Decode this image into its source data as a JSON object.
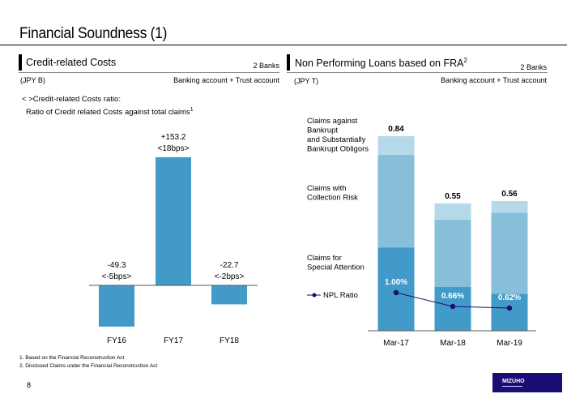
{
  "page": {
    "title": "Financial Soundness (1)",
    "page_number": "8",
    "logo_text": "MIZUHO",
    "footnotes": [
      "1. Based on the Financial Reconstruction Act",
      "2. Disclosed Claims under the Financial Reconstruction Act"
    ]
  },
  "left_panel": {
    "title": "Credit-related Costs",
    "scope": "2 Banks",
    "unit": "(JPY B)",
    "account": "Banking account + Trust account",
    "note_line1": "< >Credit-related Costs ratio:",
    "note_line2": "Ratio of Credit related Costs against total claims",
    "note_sup": "1"
  },
  "right_panel": {
    "title": "Non Performing Loans based on FRA",
    "title_sup": "2",
    "scope": "2 Banks",
    "unit": "(JPY T)",
    "account": "Banking account + Trust account"
  },
  "colors": {
    "bar_blue": "#419ac8",
    "seg_dark": "#419ac8",
    "seg_mid": "#87bfdb",
    "seg_light": "#b6d9ea",
    "npl_line": "#1a0d75",
    "logo_bg": "#1a0d75"
  },
  "chart_data": [
    {
      "type": "bar",
      "title": "Credit-related Costs",
      "ylabel": "JPY B",
      "categories": [
        "FY16",
        "FY17",
        "FY18"
      ],
      "values": [
        -49.3,
        153.2,
        -22.7
      ],
      "value_labels": [
        "-49.3",
        "+153.2",
        "-22.7"
      ],
      "ratio_labels": [
        "<-5bps>",
        "<18bps>",
        "<-2bps>"
      ],
      "ylim": [
        -60,
        170
      ],
      "grid": false
    },
    {
      "type": "bar",
      "stacked": true,
      "title": "Non Performing Loans based on FRA",
      "ylabel": "JPY T",
      "categories": [
        "Mar-17",
        "Mar-18",
        "Mar-19"
      ],
      "totals": [
        0.84,
        0.55,
        0.56
      ],
      "total_labels": [
        "0.84",
        "0.55",
        "0.56"
      ],
      "series": [
        {
          "name": "Claims for Special Attention",
          "values": [
            0.36,
            0.19,
            0.16
          ]
        },
        {
          "name": "Claims with Collection Risk",
          "values": [
            0.4,
            0.29,
            0.35
          ]
        },
        {
          "name": "Claims against Bankrupt and Substantially Bankrupt Obligors",
          "values": [
            0.08,
            0.07,
            0.05
          ]
        }
      ],
      "series_label_lines": [
        [
          "Claims for",
          "Special Attention"
        ],
        [
          "Claims with",
          "Collection Risk"
        ],
        [
          "Claims against",
          "Bankrupt",
          "and Substantially",
          "Bankrupt Obligors"
        ]
      ],
      "line_series": {
        "name": "NPL Ratio",
        "values": [
          1.0,
          0.66,
          0.62
        ],
        "labels": [
          "1.00%",
          "0.66%",
          "0.62%"
        ]
      },
      "ylim": [
        0,
        0.84
      ],
      "grid": false
    }
  ]
}
